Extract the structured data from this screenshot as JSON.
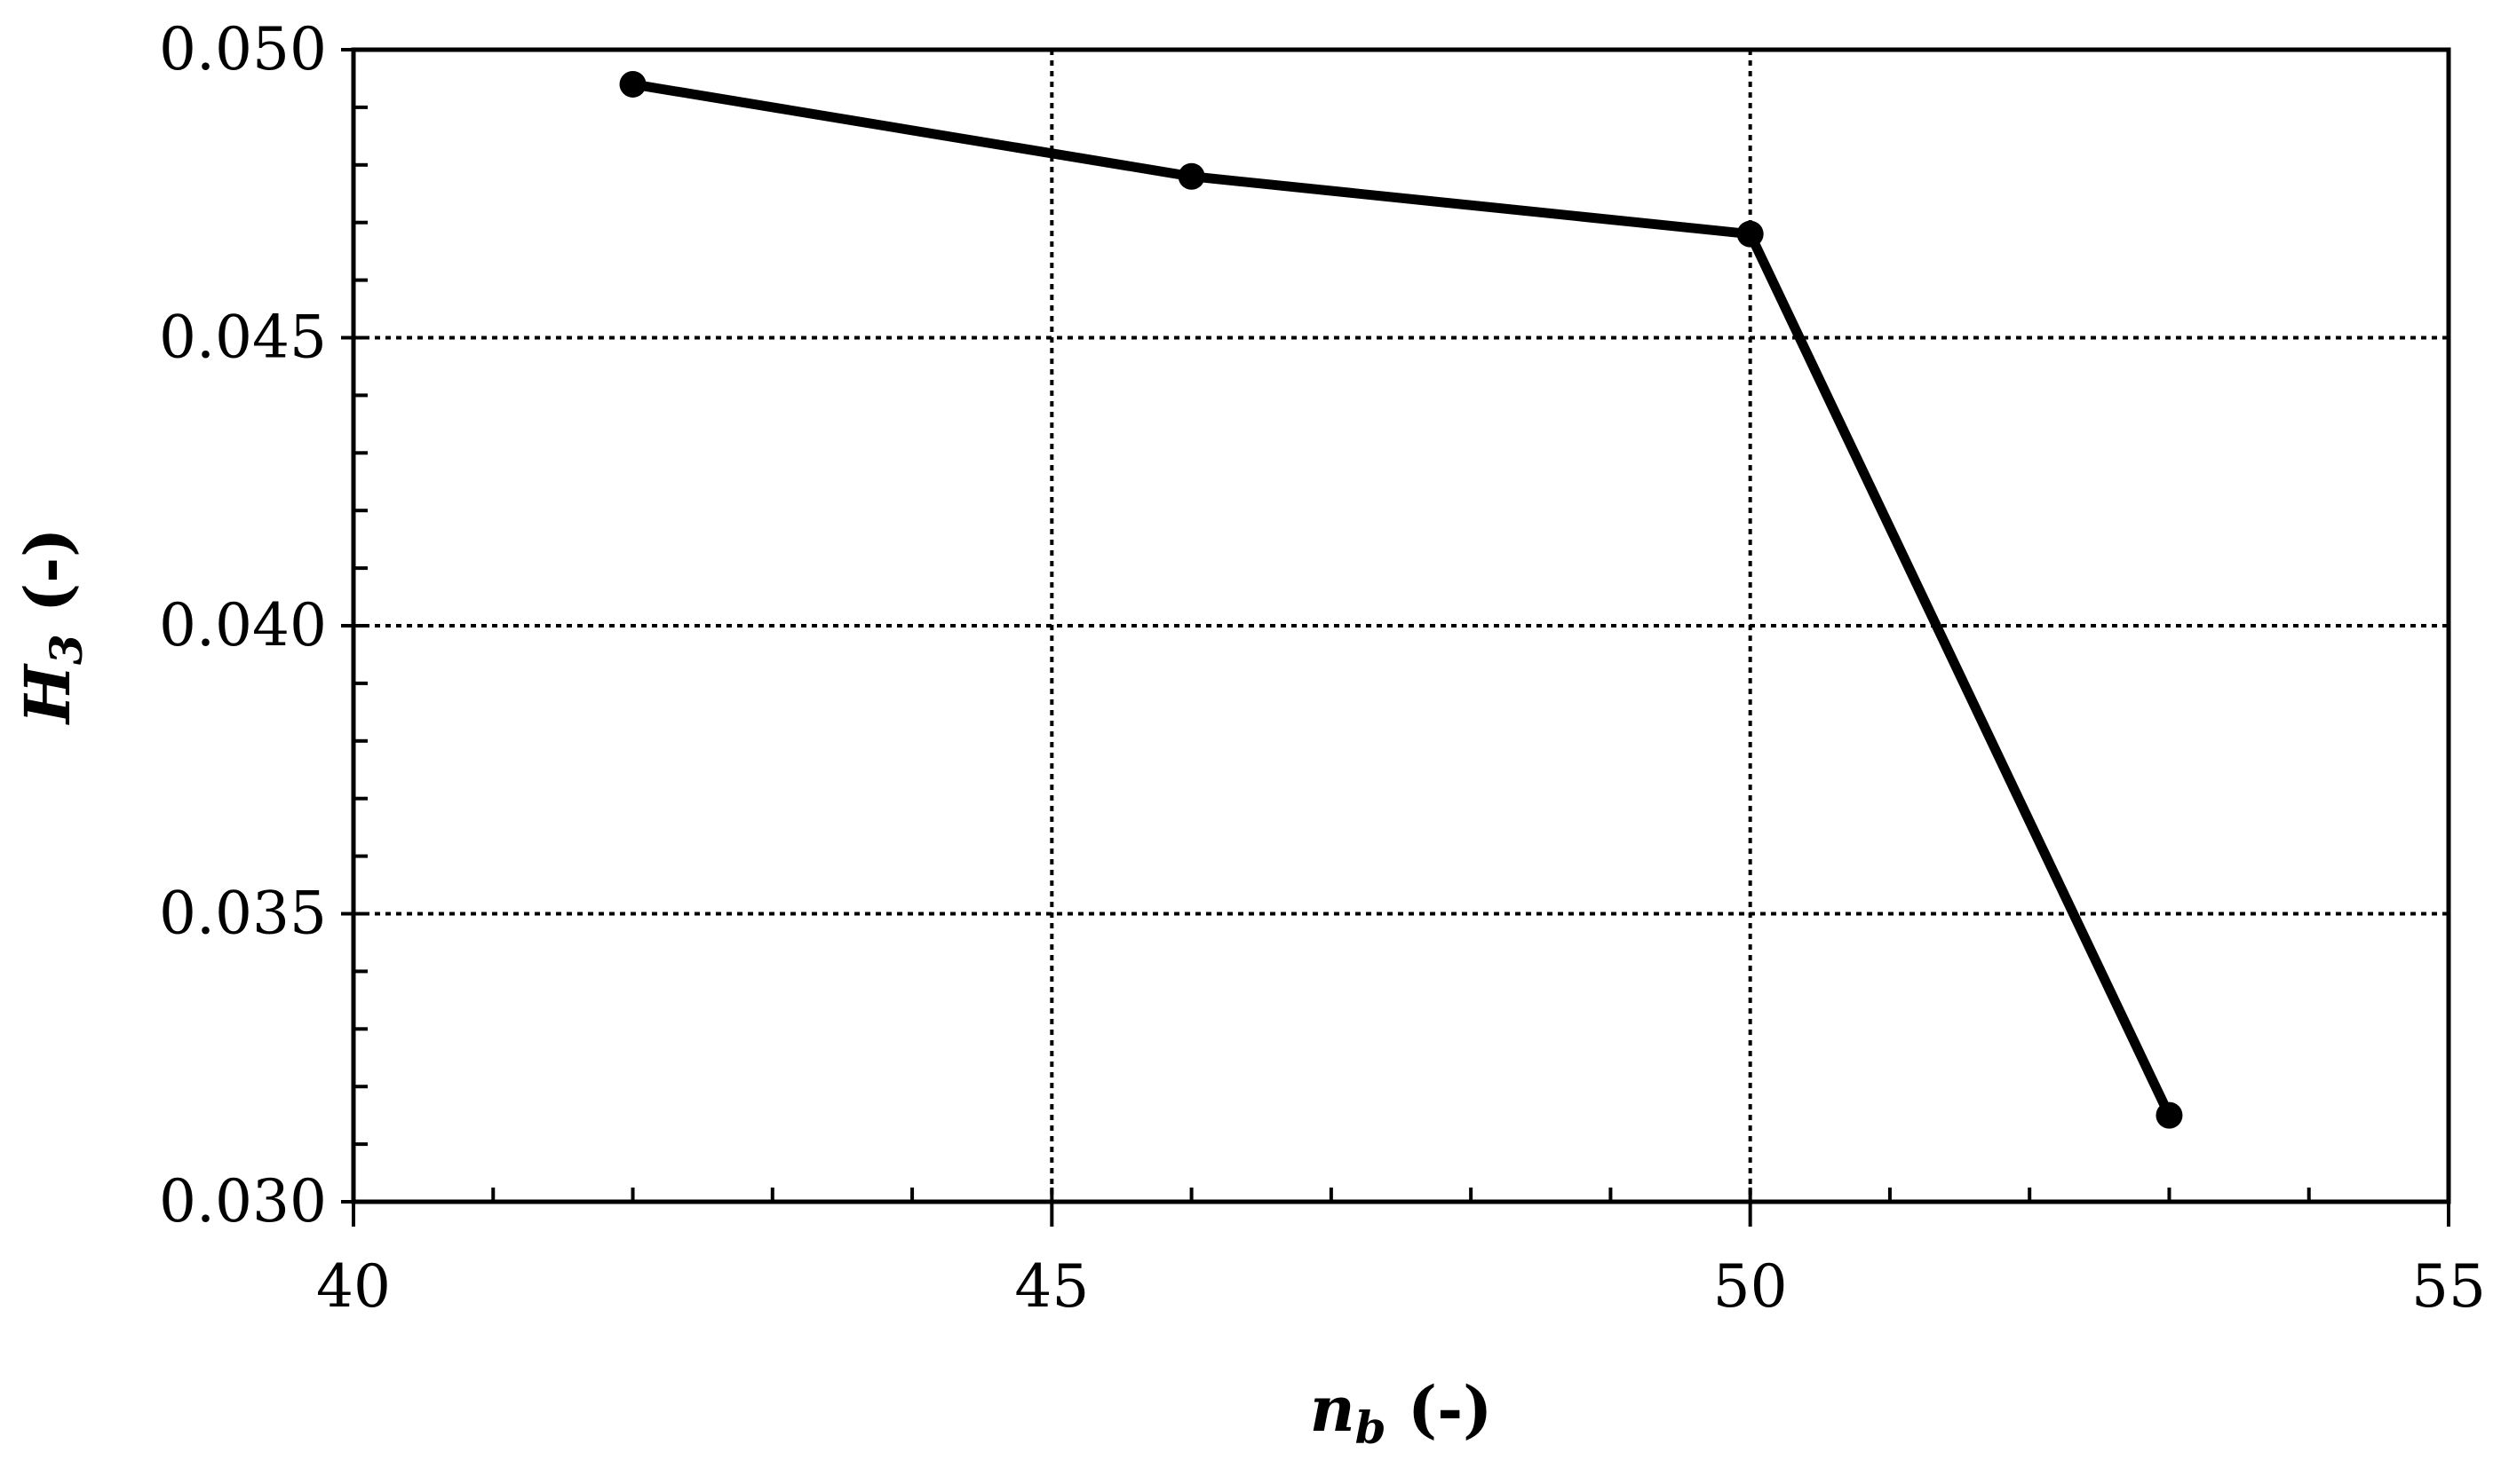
{
  "chart_data": {
    "type": "line",
    "x": [
      42,
      46,
      50,
      53
    ],
    "series": [
      {
        "values": [
          0.0494,
          0.0478,
          0.0468,
          0.0315
        ]
      }
    ],
    "xlabel": {
      "main": "n",
      "sub": "b",
      "unit": " (-)"
    },
    "ylabel": {
      "main": "H",
      "sub": "3",
      "unit": " (-)"
    },
    "xlim": [
      40,
      55
    ],
    "ylim": [
      0.03,
      0.05
    ],
    "x_ticks": [
      "40",
      "45",
      "50",
      "55"
    ],
    "y_ticks": [
      "0.030",
      "0.035",
      "0.040",
      "0.045",
      "0.050"
    ],
    "x_minor_step": 1,
    "y_minor_step": 0.001,
    "grid": true,
    "marker": "circle",
    "color": "#000000"
  }
}
